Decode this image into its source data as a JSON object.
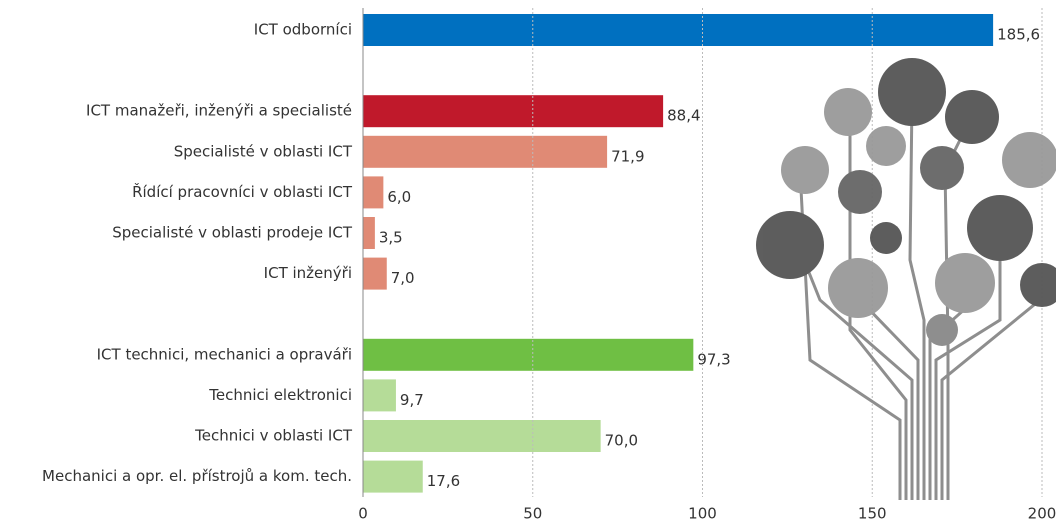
{
  "chart_data": {
    "type": "hbar",
    "categories": [
      "ICT odborníci",
      null,
      "ICT manažeři, inženýři a specialisté",
      "Specialisté v oblasti ICT",
      "Řídící pracovníci v oblasti ICT",
      "Specialisté v oblasti prodeje ICT",
      "ICT inženýři",
      null,
      "ICT technici, mechanici a opraváři",
      "Technici elektronici",
      "Technici v oblasti ICT",
      "Mechanici a opr. el. přístrojů a kom. tech."
    ],
    "values": [
      185.6,
      null,
      88.4,
      71.9,
      6.0,
      3.5,
      7.0,
      null,
      97.3,
      9.7,
      70.0,
      17.6
    ],
    "value_labels": [
      "185,6",
      null,
      "88,4",
      "71,9",
      "6,0",
      "3,5",
      "7,0",
      null,
      "97,3",
      "9,7",
      "70,0",
      "17,6"
    ],
    "colors": [
      "#0070c0",
      null,
      "#c0192b",
      "#e08a75",
      "#e08a75",
      "#e08a75",
      "#e08a75",
      null,
      "#6fbf44",
      "#b5dc98",
      "#b5dc98",
      "#b5dc98"
    ],
    "xlim": [
      0,
      200
    ],
    "xticks": [
      0,
      50,
      100,
      150,
      200
    ],
    "grid": true
  }
}
